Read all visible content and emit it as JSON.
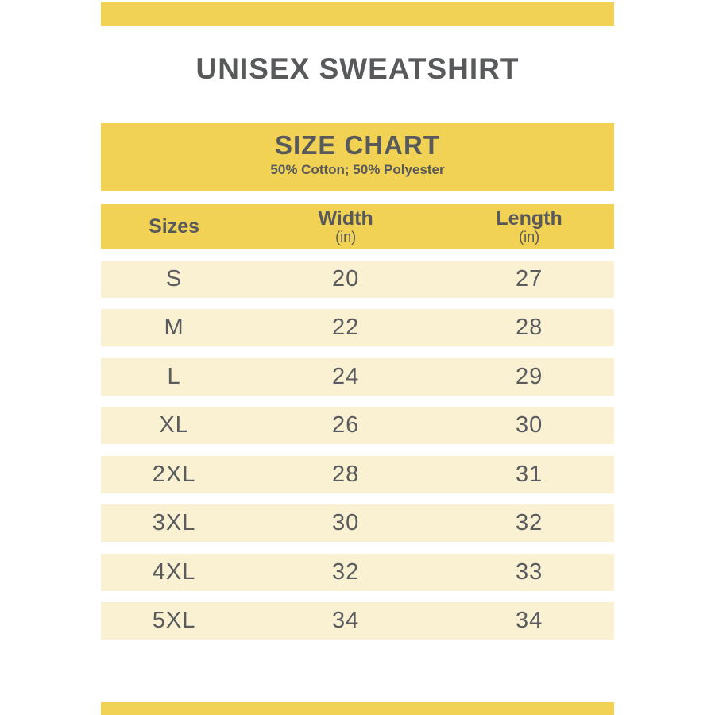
{
  "banner": {
    "title": "UNISEX SWEATSHIRT"
  },
  "size_chart": {
    "heading": "SIZE CHART",
    "subheading": "50% Cotton; 50% Polyester",
    "header": {
      "sizes_label": "Sizes",
      "width_label": "Width",
      "width_unit": "(in)",
      "length_label": "Length",
      "length_unit": "(in)"
    }
  },
  "chart_data": {
    "type": "table",
    "title": "SIZE CHART",
    "subtitle": "50% Cotton; 50% Polyester",
    "columns": [
      "Sizes",
      "Width (in)",
      "Length (in)"
    ],
    "rows": [
      [
        "S",
        20,
        27
      ],
      [
        "M",
        22,
        28
      ],
      [
        "L",
        24,
        29
      ],
      [
        "XL",
        26,
        30
      ],
      [
        "2XL",
        28,
        31
      ],
      [
        "3XL",
        30,
        32
      ],
      [
        "4XL",
        32,
        33
      ],
      [
        "5XL",
        34,
        34
      ]
    ]
  },
  "colors": {
    "accent_yellow": "#F1D254",
    "row_cream": "#FAF1D3",
    "text_dark": "#58595B",
    "text_data": "#5A5B5E"
  }
}
